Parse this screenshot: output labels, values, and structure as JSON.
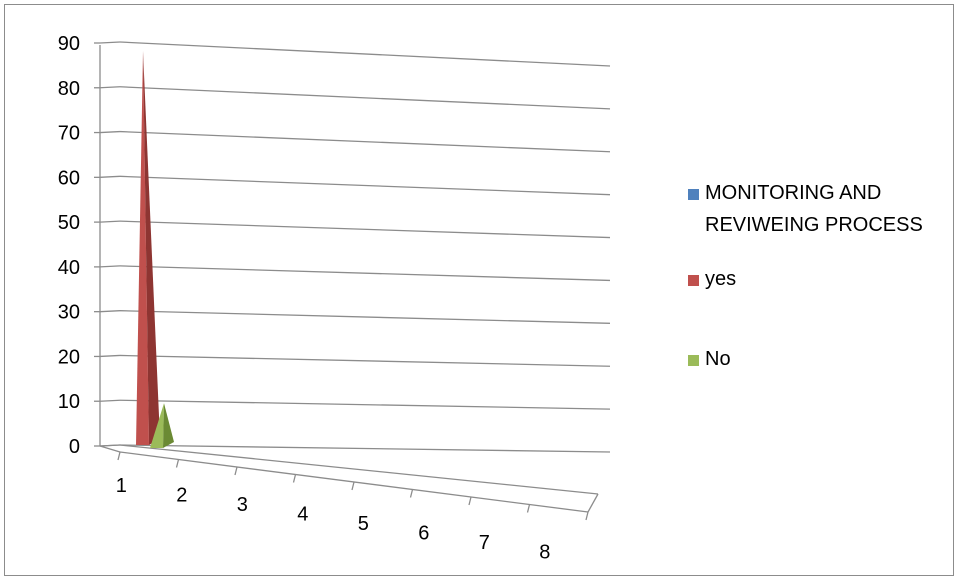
{
  "chart_data": {
    "type": "3d-bar",
    "bar_shape": "pyramid",
    "categories": [
      "1",
      "2",
      "3",
      "4",
      "5",
      "6",
      "7",
      "8"
    ],
    "y_ticks": [
      "0",
      "10",
      "20",
      "30",
      "40",
      "50",
      "60",
      "70",
      "80",
      "90"
    ],
    "ylim": [
      0,
      90
    ],
    "grid": true,
    "legend_position": "right",
    "series": [
      {
        "name": "MONITORING AND REVIWEING PROCESS",
        "color": "#4f81bd",
        "values": [
          null,
          null,
          null,
          null,
          null,
          null,
          null,
          null
        ]
      },
      {
        "name": "yes",
        "color": "#c0504d",
        "values": [
          88,
          null,
          null,
          null,
          null,
          null,
          null,
          null
        ]
      },
      {
        "name": "No",
        "color": "#9bbb59",
        "values": [
          10,
          null,
          null,
          null,
          null,
          null,
          null,
          null
        ]
      }
    ]
  }
}
